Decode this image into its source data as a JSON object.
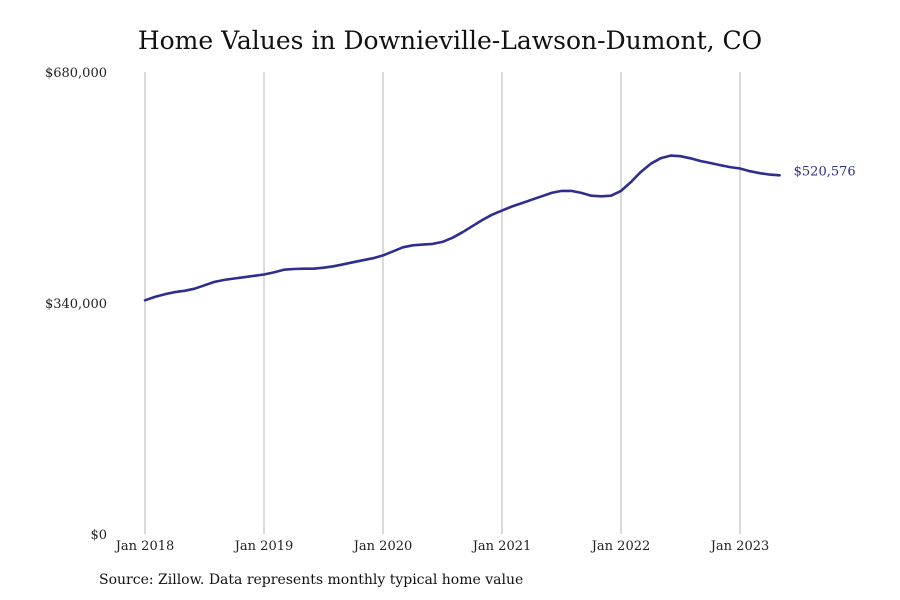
{
  "chart_data": {
    "type": "line",
    "title": "Home Values in Downieville-Lawson-Dumont, CO",
    "source": "Source: Zillow. Data represents monthly typical home value",
    "ylim": [
      0,
      680000
    ],
    "y_ticks": [
      {
        "value": 0,
        "label": "$0"
      },
      {
        "value": 340000,
        "label": "$340,000"
      },
      {
        "value": 680000,
        "label": "$680,000"
      }
    ],
    "x_ticks": [
      {
        "value": 2018.0,
        "label": "Jan 2018"
      },
      {
        "value": 2019.0,
        "label": "Jan 2019"
      },
      {
        "value": 2020.0,
        "label": "Jan 2020"
      },
      {
        "value": 2021.0,
        "label": "Jan 2021"
      },
      {
        "value": 2022.0,
        "label": "Jan 2022"
      },
      {
        "value": 2023.0,
        "label": "Jan 2023"
      }
    ],
    "xlim": [
      2018.0,
      2023.833
    ],
    "grid": "vertical",
    "series": [
      {
        "color": "#2e2e8f",
        "end_label": "$520,576",
        "points": [
          [
            2018.0,
            344000
          ],
          [
            2018.083,
            349000
          ],
          [
            2018.167,
            353000
          ],
          [
            2018.25,
            356000
          ],
          [
            2018.333,
            358000
          ],
          [
            2018.417,
            361000
          ],
          [
            2018.5,
            366000
          ],
          [
            2018.583,
            371000
          ],
          [
            2018.667,
            374000
          ],
          [
            2018.75,
            376000
          ],
          [
            2018.833,
            378000
          ],
          [
            2018.917,
            380000
          ],
          [
            2019.0,
            382000
          ],
          [
            2019.083,
            385000
          ],
          [
            2019.167,
            389000
          ],
          [
            2019.25,
            390000
          ],
          [
            2019.333,
            390500
          ],
          [
            2019.417,
            390500
          ],
          [
            2019.5,
            392000
          ],
          [
            2019.583,
            394000
          ],
          [
            2019.667,
            397000
          ],
          [
            2019.75,
            400000
          ],
          [
            2019.833,
            403000
          ],
          [
            2019.917,
            406000
          ],
          [
            2020.0,
            410000
          ],
          [
            2020.083,
            416000
          ],
          [
            2020.167,
            422000
          ],
          [
            2020.25,
            425000
          ],
          [
            2020.333,
            426000
          ],
          [
            2020.417,
            427000
          ],
          [
            2020.5,
            430000
          ],
          [
            2020.583,
            436000
          ],
          [
            2020.667,
            444000
          ],
          [
            2020.75,
            453000
          ],
          [
            2020.833,
            462000
          ],
          [
            2020.917,
            470000
          ],
          [
            2021.0,
            476000
          ],
          [
            2021.083,
            482000
          ],
          [
            2021.167,
            487000
          ],
          [
            2021.25,
            492000
          ],
          [
            2021.333,
            497000
          ],
          [
            2021.417,
            502000
          ],
          [
            2021.5,
            505000
          ],
          [
            2021.583,
            505000
          ],
          [
            2021.667,
            502000
          ],
          [
            2021.75,
            498000
          ],
          [
            2021.833,
            497000
          ],
          [
            2021.917,
            498000
          ],
          [
            2022.0,
            505000
          ],
          [
            2022.083,
            518000
          ],
          [
            2022.167,
            533000
          ],
          [
            2022.25,
            545000
          ],
          [
            2022.333,
            553000
          ],
          [
            2022.417,
            557000
          ],
          [
            2022.5,
            556000
          ],
          [
            2022.583,
            553000
          ],
          [
            2022.667,
            549000
          ],
          [
            2022.75,
            546000
          ],
          [
            2022.833,
            543000
          ],
          [
            2022.917,
            540000
          ],
          [
            2023.0,
            538000
          ],
          [
            2023.083,
            534000
          ],
          [
            2023.167,
            531000
          ],
          [
            2023.25,
            529000
          ],
          [
            2023.333,
            528000
          ],
          [
            2023.333,
            520576
          ]
        ]
      }
    ]
  }
}
